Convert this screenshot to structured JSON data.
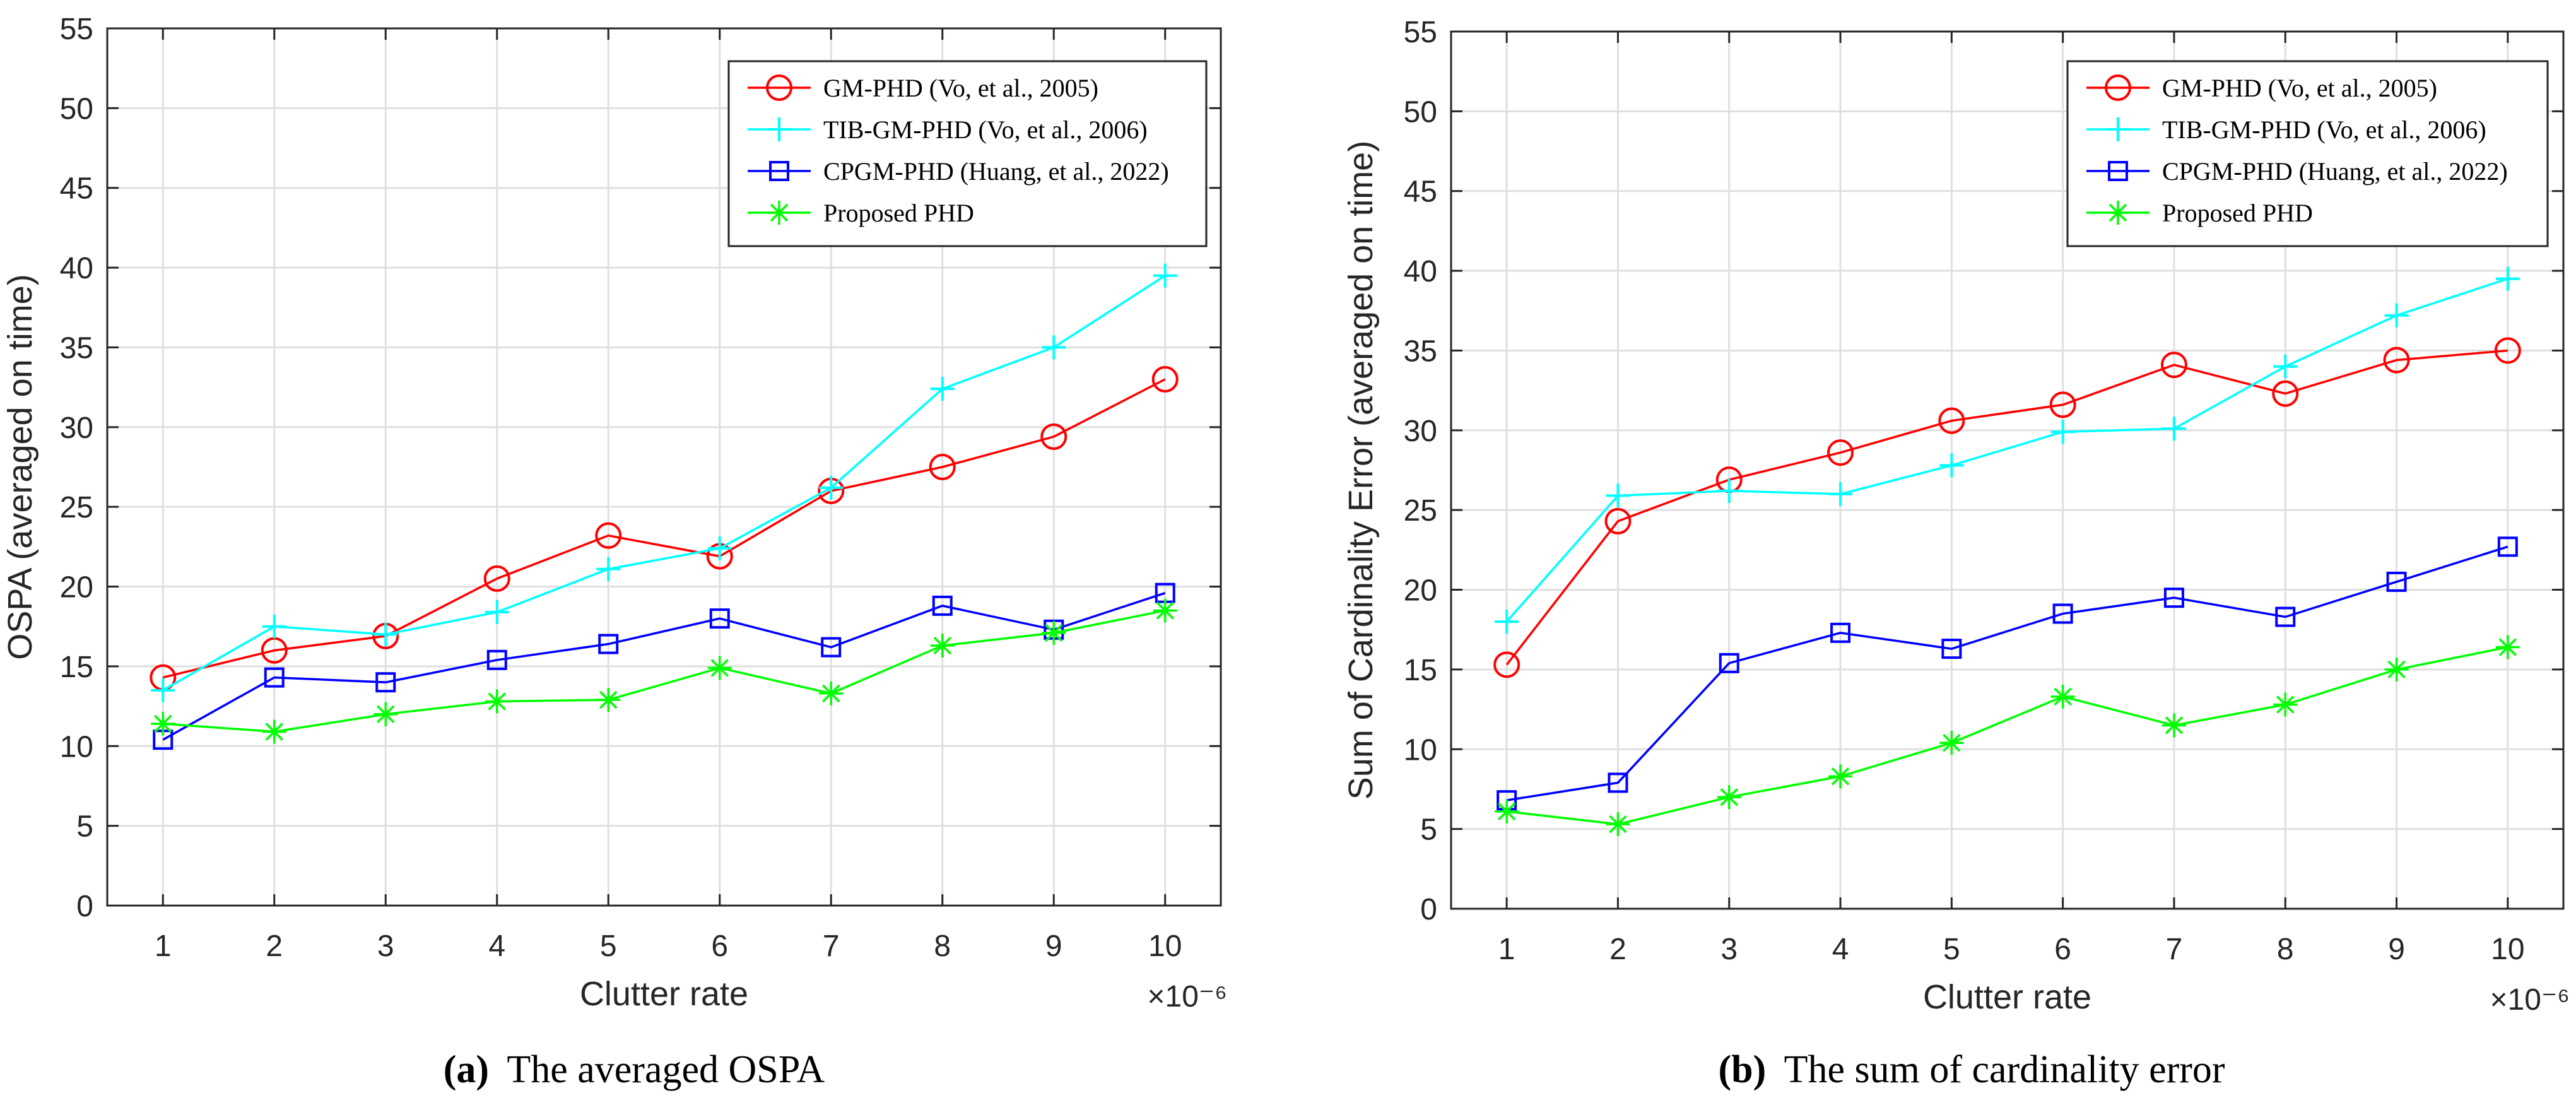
{
  "figure": {
    "captions": [
      {
        "tag": "(a)",
        "text": "The averaged OSPA"
      },
      {
        "tag": "(b)",
        "text": "The sum of cardinality error"
      }
    ]
  },
  "chart_data": [
    {
      "type": "line",
      "title": "",
      "xlabel": "Clutter rate",
      "ylabel": "OSPA (averaged on time)",
      "x_exponent": "×10⁻⁶",
      "x": [
        1,
        2,
        3,
        4,
        5,
        6,
        7,
        8,
        9,
        10
      ],
      "xlim": [
        0.5,
        10.5
      ],
      "ylim": [
        0,
        55
      ],
      "yticks": [
        0,
        5,
        10,
        15,
        20,
        25,
        30,
        35,
        40,
        45,
        50,
        55
      ],
      "grid": true,
      "legend_position": "top-right",
      "series": [
        {
          "name": "GM-PHD (Vo, et al., 2005)",
          "color": "#ff0000",
          "marker": "circle",
          "values": [
            14.3,
            16.0,
            16.9,
            20.5,
            23.2,
            21.9,
            26.0,
            27.5,
            29.4,
            33.0
          ]
        },
        {
          "name": "TIB-GM-PHD (Vo, et al., 2006)",
          "color": "#00ffff",
          "marker": "plus",
          "values": [
            13.5,
            17.5,
            17.0,
            18.4,
            21.1,
            22.4,
            26.2,
            32.4,
            35.0,
            39.5
          ]
        },
        {
          "name": "CPGM-PHD (Huang, et al., 2022)",
          "color": "#0000ff",
          "marker": "square",
          "values": [
            10.4,
            14.3,
            14.0,
            15.4,
            16.4,
            18.0,
            16.2,
            18.8,
            17.3,
            19.6
          ]
        },
        {
          "name": "Proposed PHD",
          "color": "#00ff00",
          "marker": "asterisk",
          "values": [
            11.4,
            10.9,
            12.0,
            12.8,
            12.9,
            14.9,
            13.3,
            16.3,
            17.1,
            18.5
          ]
        }
      ]
    },
    {
      "type": "line",
      "title": "",
      "xlabel": "Clutter rate",
      "ylabel": "Sum of Cardinality Error (averaged on time)",
      "x_exponent": "×10⁻⁶",
      "x": [
        1,
        2,
        3,
        4,
        5,
        6,
        7,
        8,
        9,
        10
      ],
      "xlim": [
        0.5,
        10.5
      ],
      "ylim": [
        0,
        55
      ],
      "yticks": [
        0,
        5,
        10,
        15,
        20,
        25,
        30,
        35,
        40,
        45,
        50,
        55
      ],
      "grid": true,
      "legend_position": "top-right",
      "series": [
        {
          "name": "GM-PHD (Vo, et al., 2005)",
          "color": "#ff0000",
          "marker": "circle",
          "values": [
            15.3,
            24.3,
            26.9,
            28.6,
            30.6,
            31.6,
            34.1,
            32.3,
            34.4,
            35.0
          ]
        },
        {
          "name": "TIB-GM-PHD (Vo, et al., 2006)",
          "color": "#00ffff",
          "marker": "plus",
          "values": [
            18.0,
            25.9,
            26.2,
            26.0,
            27.8,
            29.9,
            30.1,
            34.0,
            37.2,
            39.5
          ]
        },
        {
          "name": "CPGM-PHD (Huang, et al., 2022)",
          "color": "#0000ff",
          "marker": "square",
          "values": [
            6.8,
            7.9,
            15.4,
            17.3,
            16.3,
            18.5,
            19.5,
            18.3,
            20.5,
            22.7
          ]
        },
        {
          "name": "Proposed PHD",
          "color": "#00ff00",
          "marker": "asterisk",
          "values": [
            6.1,
            5.3,
            7.0,
            8.3,
            10.4,
            13.3,
            11.5,
            12.8,
            15.0,
            16.4
          ]
        }
      ]
    }
  ]
}
